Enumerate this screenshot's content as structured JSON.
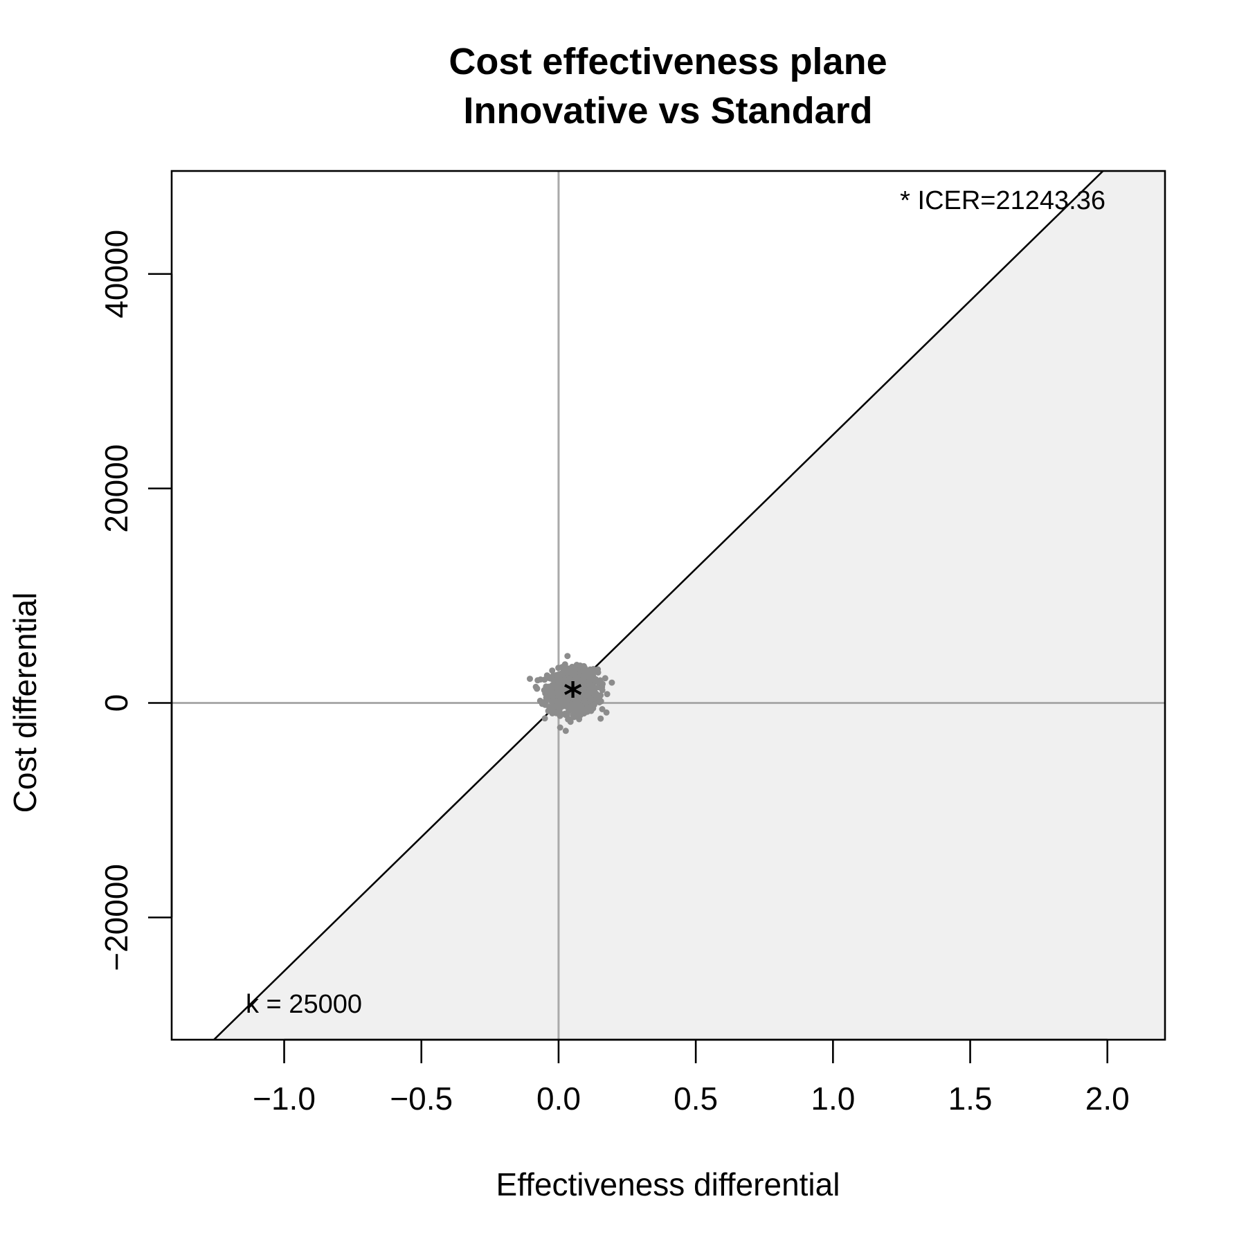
{
  "chart_data": {
    "type": "scatter",
    "title": "Cost effectiveness plane",
    "subtitle": "Innovative vs Standard",
    "xlabel": "Effectiveness differential",
    "ylabel": "Cost differential",
    "xlim": [
      -1.41,
      2.21
    ],
    "ylim": [
      -31400,
      49600
    ],
    "xticks": [
      -1.0,
      -0.5,
      0.0,
      0.5,
      1.0,
      1.5,
      2.0
    ],
    "xtick_labels": [
      "−1.0",
      "−0.5",
      "0.0",
      "0.5",
      "1.0",
      "1.5",
      "2.0"
    ],
    "yticks": [
      -20000,
      0,
      20000,
      40000
    ],
    "ytick_labels": [
      "−20000",
      "0",
      "20000",
      "40000"
    ],
    "grid": false,
    "reference_lines": {
      "x": 0,
      "y": 0,
      "color": "#aaaaaa"
    },
    "willingness_to_pay": {
      "k": 25000,
      "label": "k = 25000"
    },
    "icer": {
      "x": 0.052,
      "y": 1104.6,
      "marker": "*",
      "label": "* ICER=21243.36"
    },
    "sustainable_region_color": "#f0f0f0",
    "point_color": "#8c8c8c",
    "simulations": {
      "n": 1000,
      "mean_x": 0.052,
      "mean_y": 1100,
      "sd_x": 0.045,
      "sd_y": 1000,
      "x_range": [
        -0.15,
        0.2
      ],
      "y_range": [
        -2600,
        4800
      ]
    }
  }
}
